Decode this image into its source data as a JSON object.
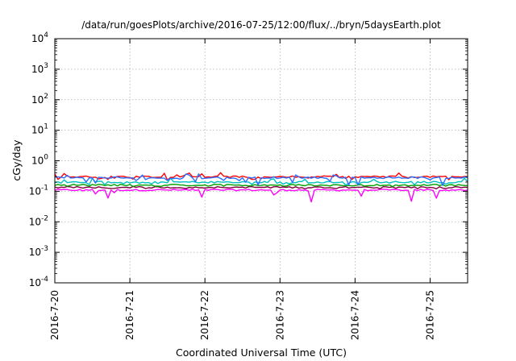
{
  "chart_data": {
    "type": "line",
    "title": "/data/run/goesPlots/archive/2016-07-25/12:00/flux/../bryn/5daysEarth.plot",
    "xlabel": "Coordinated Universal Time (UTC)",
    "ylabel": "cGy/day",
    "yscale": "log",
    "ylim": [
      0.0001,
      10000
    ],
    "xlim": [
      "2016-07-20T00:00",
      "2016-07-25T12:00"
    ],
    "grid": true,
    "legend": "none",
    "x_ticks": [
      "2016-7-20",
      "2016-7-21",
      "2016-7-22",
      "2016-7-23",
      "2016-7-24",
      "2016-7-25"
    ],
    "y_ticks": [
      {
        "base": "10",
        "exp": "-4"
      },
      {
        "base": "10",
        "exp": "-3"
      },
      {
        "base": "10",
        "exp": "-2"
      },
      {
        "base": "10",
        "exp": "-1"
      },
      {
        "base": "10",
        "exp": "0"
      },
      {
        "base": "10",
        "exp": "1"
      },
      {
        "base": "10",
        "exp": "2"
      },
      {
        "base": "10",
        "exp": "3"
      },
      {
        "base": "10",
        "exp": "4"
      }
    ],
    "series": [
      {
        "color": "#ff00ff",
        "level": 0.11,
        "dip_depth": 0.6,
        "sample_hours": 1.0
      },
      {
        "color": "#800040",
        "level": 0.135,
        "dip_depth": 0.12,
        "sample_hours": 1.0
      },
      {
        "color": "#00a000",
        "level": 0.16,
        "dip_depth": 0.12,
        "sample_hours": 1.0
      },
      {
        "color": "#00c0c0",
        "level": 0.2,
        "dip_depth": 0.2,
        "sample_hours": 1.0
      },
      {
        "color": "#ff0000",
        "level": 0.3,
        "dip_depth": 0.25,
        "sample_hours": 1.0
      },
      {
        "color": "#2a6fff",
        "level": 0.28,
        "dip_depth": 0.45,
        "sample_hours": 1.0
      }
    ]
  }
}
